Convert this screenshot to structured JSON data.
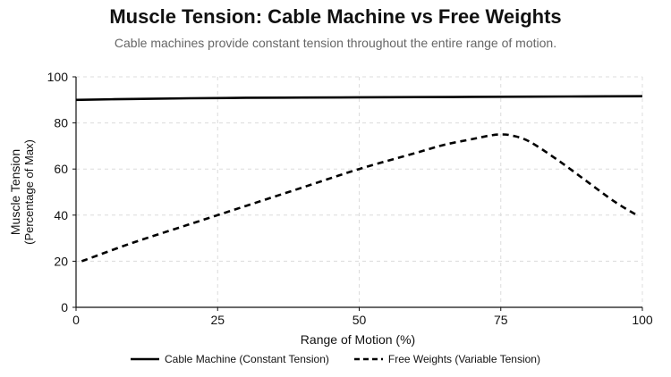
{
  "chart_data": {
    "type": "line",
    "title": "Muscle Tension: Cable Machine vs Free Weights",
    "subtitle": "Cable machines provide constant tension throughout the entire range of motion.",
    "xlabel": "Range of Motion (%)",
    "ylabel": "Muscle Tension",
    "ylabel_sub": "(Percentage of Max)",
    "xlim": [
      0,
      100
    ],
    "ylim": [
      0,
      100
    ],
    "xticks": [
      0,
      25,
      50,
      75,
      100
    ],
    "yticks": [
      0,
      20,
      40,
      60,
      80,
      100
    ],
    "grid": true,
    "legend_position": "bottom-center",
    "series": [
      {
        "name": "Cable Machine (Constant Tension)",
        "style": "solid",
        "color": "#000000",
        "x": [
          0,
          10,
          20,
          30,
          40,
          50,
          60,
          70,
          80,
          90,
          100
        ],
        "y": [
          90,
          90.4,
          90.7,
          90.9,
          91.0,
          91.1,
          91.2,
          91.3,
          91.4,
          91.5,
          91.6
        ]
      },
      {
        "name": "Free Weights (Variable Tension)",
        "style": "dashed",
        "color": "#000000",
        "x": [
          1,
          10,
          20,
          30,
          40,
          50,
          60,
          65,
          70,
          73,
          75,
          77,
          80,
          85,
          90,
          95,
          99
        ],
        "y": [
          20,
          28,
          36,
          44,
          52,
          60,
          67,
          70.5,
          73,
          74.5,
          75,
          74.5,
          72,
          64,
          55,
          46,
          40
        ]
      }
    ]
  }
}
